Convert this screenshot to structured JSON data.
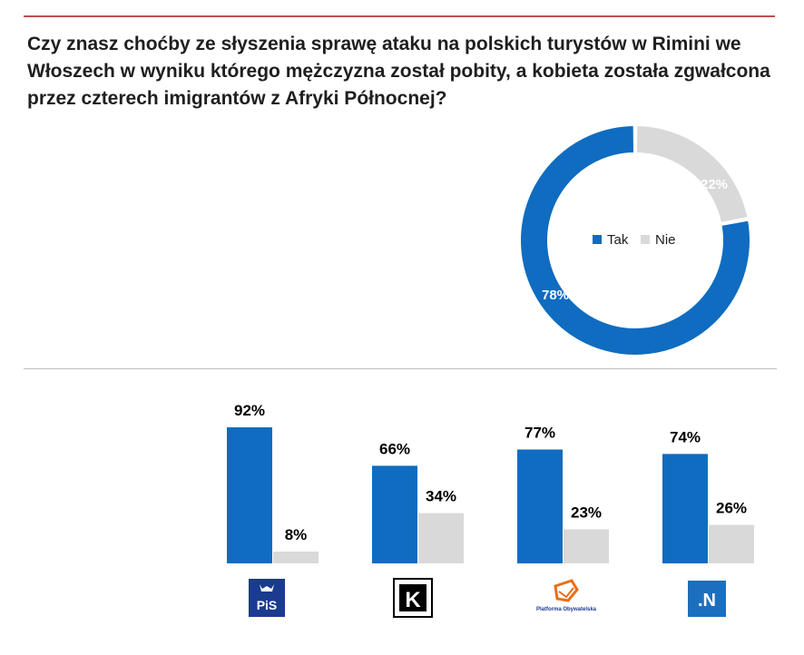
{
  "title": "Czy znasz choćby ze słyszenia sprawę ataku na polskich turystów w Rimini we Włoszech w wyniku którego mężczyzna został pobity, a kobieta została zgwałcona przez czterech imigrantów z Afryki Północnej?",
  "colors": {
    "tak": "#0f6cc0",
    "nie": "#d9d9d9",
    "accent_rule": "#c0504d"
  },
  "chart_data": [
    {
      "type": "pie",
      "variant": "donut",
      "categories": [
        "Tak",
        "Nie"
      ],
      "values": [
        78,
        22
      ],
      "value_labels": [
        "78%",
        "22%"
      ],
      "legend": [
        "Tak",
        "Nie"
      ],
      "legend_position": "center"
    },
    {
      "type": "bar",
      "categories": [
        "PiS",
        "Kukiz'15",
        "Platforma Obywatelska",
        "Nowoczesna"
      ],
      "category_logos": [
        "PiS",
        "K",
        "Platforma Obywatelska",
        ".N"
      ],
      "series": [
        {
          "name": "Tak",
          "values": [
            92,
            66,
            77,
            74
          ],
          "labels": [
            "92%",
            "66%",
            "77%",
            "74%"
          ]
        },
        {
          "name": "Nie",
          "values": [
            8,
            34,
            23,
            26
          ],
          "labels": [
            "8%",
            "34%",
            "23%",
            "26%"
          ]
        }
      ],
      "ylim": [
        0,
        100
      ]
    }
  ]
}
